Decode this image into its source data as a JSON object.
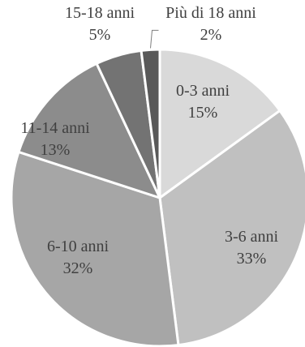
{
  "chart_data": {
    "type": "pie",
    "title": "",
    "categories": [
      "0-3 anni",
      "3-6 anni",
      "6-10 anni",
      "11-14 anni",
      "15-18 anni",
      "Più di 18 anni"
    ],
    "values": [
      15,
      33,
      32,
      13,
      5,
      2
    ],
    "value_labels": [
      "15%",
      "33%",
      "32%",
      "13%",
      "5%",
      "2%"
    ],
    "colors": [
      "#d9d9d9",
      "#c0c0c0",
      "#a6a6a6",
      "#8c8c8c",
      "#737373",
      "#595959"
    ],
    "legend": "none",
    "slice_border": "#ffffff"
  }
}
